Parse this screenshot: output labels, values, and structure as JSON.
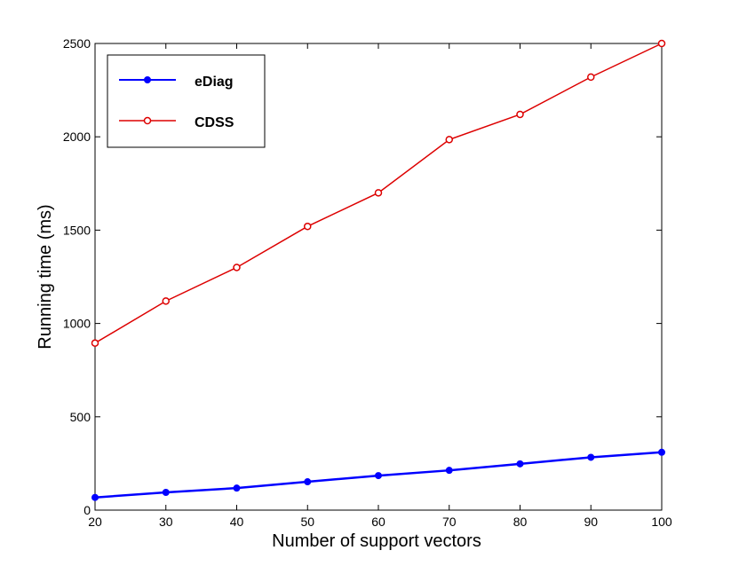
{
  "chart_data": {
    "type": "line",
    "title": "",
    "xlabel": "Number of support vectors",
    "ylabel": "Running time (ms)",
    "xlim": [
      20,
      100
    ],
    "ylim": [
      0,
      2500
    ],
    "x_ticks": [
      20,
      30,
      40,
      50,
      60,
      70,
      80,
      90,
      100
    ],
    "y_ticks": [
      0,
      500,
      1000,
      1500,
      2000,
      2500
    ],
    "grid": false,
    "legend_position": "top-left",
    "x": [
      20,
      30,
      40,
      50,
      60,
      70,
      80,
      90,
      100
    ],
    "series": [
      {
        "name": "eDiag",
        "color": "#0000ff",
        "marker": "filled-circle",
        "values": [
          68,
          95,
          118,
          152,
          185,
          213,
          248,
          283,
          310
        ]
      },
      {
        "name": "CDSS",
        "color": "#dd0000",
        "marker": "open-circle",
        "values": [
          895,
          1120,
          1300,
          1520,
          1700,
          1985,
          2120,
          2320,
          2500
        ]
      }
    ]
  }
}
